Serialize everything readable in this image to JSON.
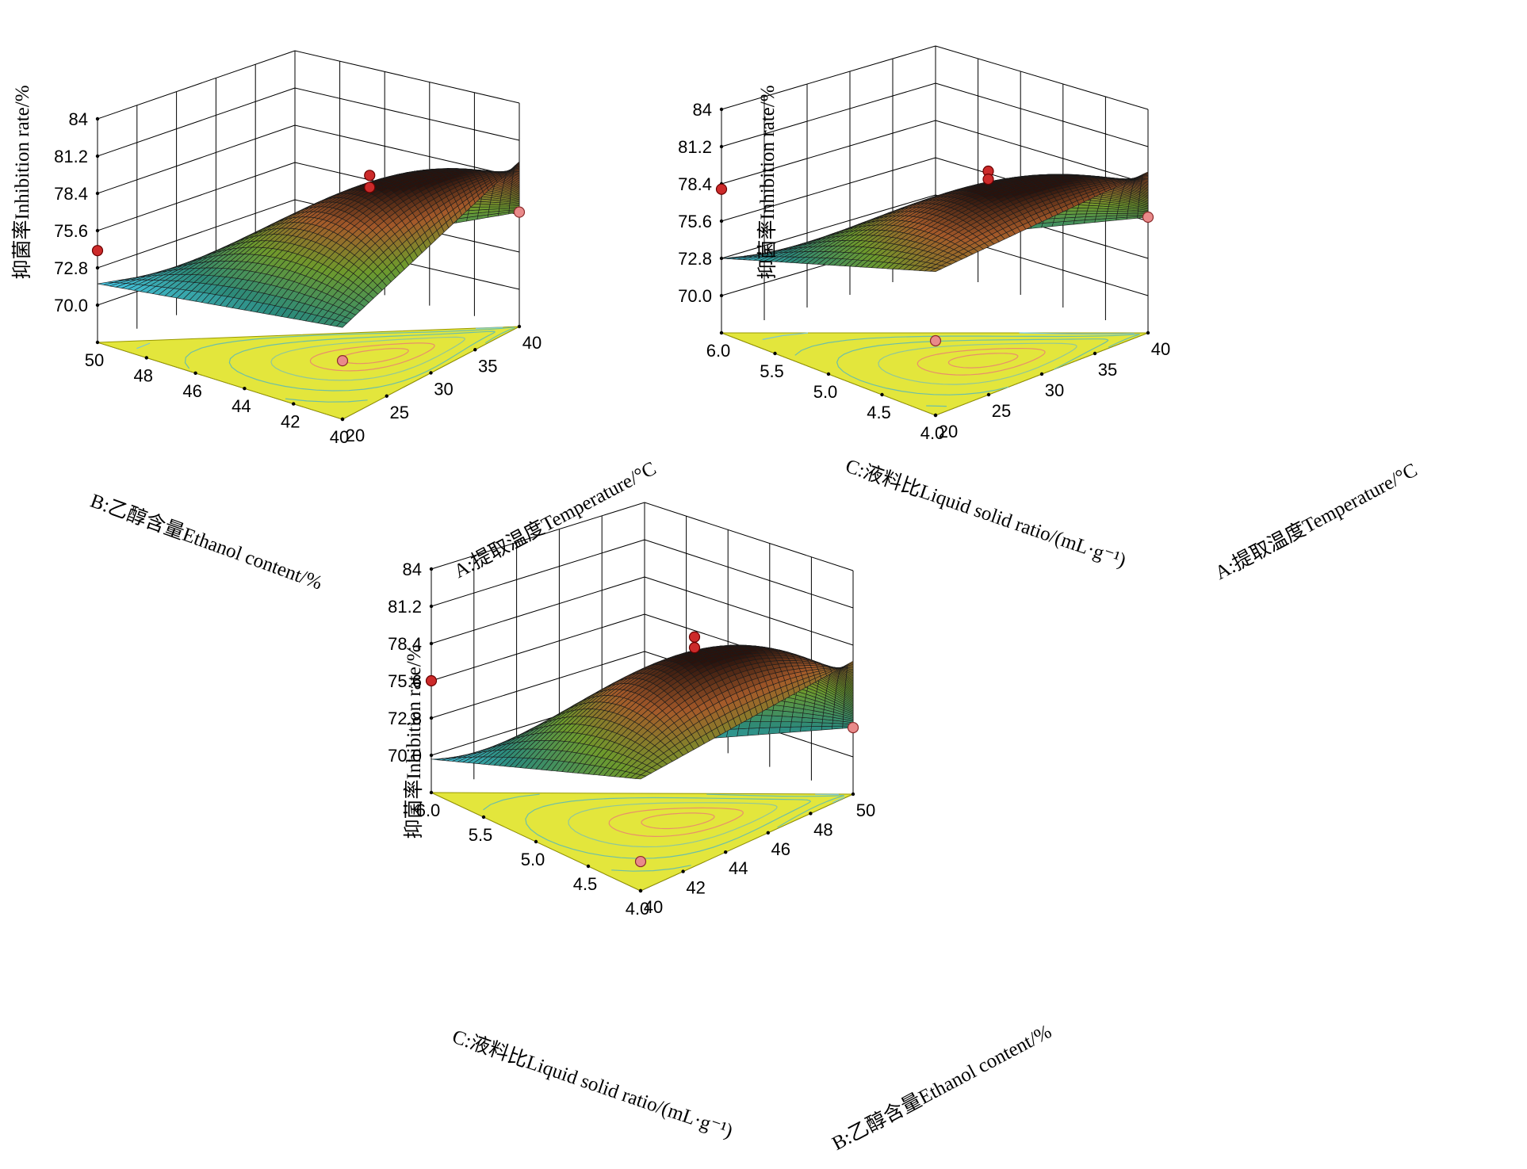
{
  "chart_data": [
    {
      "type": "surface3d",
      "z_label": "抑菌率Inhibition rate/%",
      "z_ticks": [
        "70.0",
        "72.8",
        "75.6",
        "78.4",
        "81.2",
        "84"
      ],
      "zlim": [
        67.2,
        84
      ],
      "x_label": "B:乙醇含量Ethanol content/%",
      "x_ticks": [
        "50",
        "48",
        "46",
        "44",
        "42",
        "40"
      ],
      "y_label": "A:提取温度Temperature/°C",
      "y_ticks": [
        "20",
        "25",
        "30",
        "35",
        "40"
      ],
      "corner_values": {
        "back": 79.6,
        "left": 74.1,
        "front": 71.6,
        "right": 75.8
      },
      "peak_value": 80.0,
      "design_points": [
        80.6,
        79.7,
        74.1,
        71.6,
        75.8
      ]
    },
    {
      "type": "surface3d",
      "z_label": "抑菌率Inhibition rate/%",
      "z_ticks": [
        "70.0",
        "72.8",
        "75.6",
        "78.4",
        "81.2",
        "84"
      ],
      "zlim": [
        67.2,
        84
      ],
      "x_label": "C:液料比Liquid solid ratio/(mL·g⁻¹)",
      "x_ticks": [
        "6.0",
        "5.5",
        "5.0",
        "4.5",
        "4.0"
      ],
      "y_label": "A:提取温度Temperature/°C",
      "y_ticks": [
        "20",
        "25",
        "30",
        "35",
        "40"
      ],
      "corner_values": {
        "back": 79.3,
        "left": 78.0,
        "front": 72.8,
        "right": 75.9
      },
      "peak_value": 80.1,
      "design_points": [
        80.9,
        80.3,
        78.0,
        72.8,
        75.9
      ]
    },
    {
      "type": "surface3d",
      "z_label": "抑菌率Inhibition rate/%",
      "z_ticks": [
        "70.0",
        "72.8",
        "75.6",
        "78.4",
        "81.2",
        "84"
      ],
      "zlim": [
        67.2,
        84
      ],
      "x_label": "C:液料比Liquid solid ratio/(mL·g⁻¹)",
      "x_ticks": [
        "6.0",
        "5.5",
        "5.0",
        "4.5",
        "4.0"
      ],
      "y_label": "B:乙醇含量Ethanol content/%",
      "y_ticks": [
        "40",
        "42",
        "44",
        "46",
        "48",
        "50"
      ],
      "corner_values": {
        "back": 77.2,
        "left": 75.6,
        "front": 69.7,
        "right": 72.2
      },
      "peak_value": 79.8,
      "design_points": [
        80.8,
        80.0,
        75.6,
        69.4,
        72.2
      ]
    }
  ]
}
